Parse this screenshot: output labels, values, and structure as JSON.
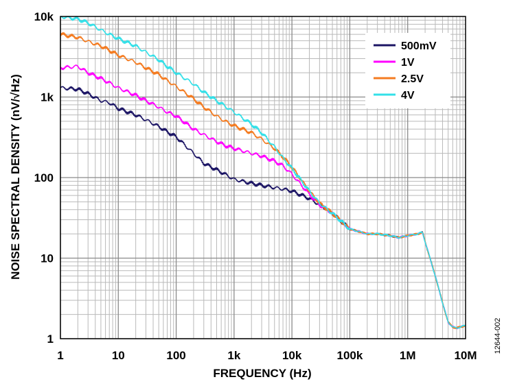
{
  "chart_data": {
    "type": "line",
    "xlabel": "FREQUENCY (Hz)",
    "ylabel": "NOISE SPECTRAL DENSITY (nV/√Hz)",
    "x_scale": "log",
    "y_scale": "log",
    "xlim": [
      1,
      10000000
    ],
    "ylim": [
      1,
      10000
    ],
    "grid": true,
    "legend_position": "top-right",
    "x_ticks": [
      {
        "value": 1,
        "label": "1"
      },
      {
        "value": 10,
        "label": "10"
      },
      {
        "value": 100,
        "label": "100"
      },
      {
        "value": 1000,
        "label": "1k"
      },
      {
        "value": 10000,
        "label": "10k"
      },
      {
        "value": 100000,
        "label": "100k"
      },
      {
        "value": 1000000,
        "label": "1M"
      },
      {
        "value": 10000000,
        "label": "10M"
      }
    ],
    "y_ticks": [
      {
        "value": 1,
        "label": "1"
      },
      {
        "value": 10,
        "label": "10"
      },
      {
        "value": 100,
        "label": "100"
      },
      {
        "value": 1000,
        "label": "1k"
      },
      {
        "value": 10000,
        "label": "10k"
      }
    ],
    "series": [
      {
        "name": "500mV",
        "color": "#1b1464",
        "x": [
          1,
          2,
          3,
          5,
          7,
          10,
          20,
          30,
          50,
          70,
          100,
          200,
          300,
          500,
          700,
          1000,
          2000,
          3000,
          5000,
          7000,
          10000,
          20000,
          30000,
          50000,
          70000,
          100000,
          200000,
          300000,
          500000,
          700000,
          1000000,
          1500000,
          1800000,
          2000000,
          3000000,
          4000000,
          5000000,
          6000000,
          7000000,
          8000000,
          10000000
        ],
        "y": [
          1300,
          1250,
          1100,
          900,
          850,
          720,
          600,
          520,
          430,
          370,
          320,
          200,
          150,
          125,
          110,
          95,
          85,
          80,
          75,
          72,
          68,
          55,
          46,
          36,
          29,
          23,
          20,
          20,
          19,
          18,
          19,
          20,
          21,
          16,
          6,
          2.8,
          1.6,
          1.4,
          1.35,
          1.4,
          1.45
        ]
      },
      {
        "name": "1V",
        "color": "#ff00ff",
        "x": [
          1,
          2,
          3,
          5,
          7,
          10,
          20,
          30,
          50,
          70,
          100,
          200,
          300,
          500,
          700,
          1000,
          2000,
          3000,
          5000,
          7000,
          10000,
          20000,
          30000,
          50000,
          70000,
          100000,
          200000,
          300000,
          500000,
          700000,
          1000000,
          1500000,
          1800000,
          2000000,
          3000000,
          4000000,
          5000000,
          6000000,
          7000000,
          8000000,
          10000000
        ],
        "y": [
          2300,
          2400,
          2000,
          1700,
          1500,
          1300,
          1050,
          900,
          750,
          650,
          580,
          400,
          340,
          280,
          250,
          230,
          200,
          185,
          160,
          140,
          110,
          62,
          46,
          36,
          29,
          23,
          20,
          20,
          19,
          18,
          19,
          20,
          21,
          16,
          6,
          2.8,
          1.6,
          1.4,
          1.35,
          1.4,
          1.45
        ]
      },
      {
        "name": "2.5V",
        "color": "#f47b20",
        "x": [
          1,
          2,
          3,
          5,
          7,
          10,
          20,
          30,
          50,
          70,
          100,
          200,
          300,
          500,
          700,
          1000,
          2000,
          3000,
          5000,
          7000,
          10000,
          20000,
          30000,
          50000,
          70000,
          100000,
          200000,
          300000,
          500000,
          700000,
          1000000,
          1500000,
          1800000,
          2000000,
          3000000,
          4000000,
          5000000,
          6000000,
          7000000,
          8000000,
          10000000
        ],
        "y": [
          6000,
          5500,
          4900,
          4300,
          3800,
          3300,
          2700,
          2300,
          1900,
          1600,
          1350,
          950,
          750,
          580,
          500,
          440,
          360,
          300,
          230,
          180,
          135,
          68,
          48,
          36,
          29,
          23,
          20,
          20,
          19,
          18,
          19,
          20,
          21,
          16,
          6,
          2.8,
          1.6,
          1.4,
          1.35,
          1.4,
          1.45
        ]
      },
      {
        "name": "4V",
        "color": "#33e0e8",
        "x": [
          1,
          2,
          3,
          5,
          7,
          10,
          20,
          30,
          50,
          70,
          100,
          200,
          300,
          500,
          700,
          1000,
          2000,
          3000,
          5000,
          7000,
          10000,
          20000,
          30000,
          50000,
          70000,
          100000,
          200000,
          300000,
          500000,
          700000,
          1000000,
          1500000,
          1800000,
          2000000,
          3000000,
          4000000,
          5000000,
          6000000,
          7000000,
          8000000,
          10000000
        ],
        "y": [
          10000,
          9300,
          8300,
          6800,
          6000,
          5300,
          4300,
          3600,
          2900,
          2400,
          2000,
          1450,
          1150,
          900,
          770,
          650,
          460,
          360,
          240,
          175,
          130,
          68,
          48,
          36,
          29,
          23,
          20,
          20,
          19,
          18,
          19,
          20,
          21,
          16,
          6,
          2.8,
          1.6,
          1.4,
          1.35,
          1.4,
          1.45
        ]
      }
    ]
  },
  "figure_code": "12644-002"
}
